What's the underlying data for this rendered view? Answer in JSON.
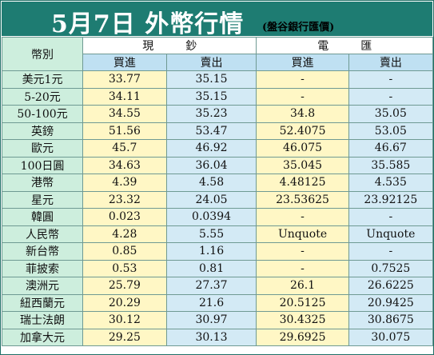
{
  "title": {
    "main": "5月7日 外幣行情",
    "source": "(盤谷銀行匯價)"
  },
  "headers": {
    "currency": "幣別",
    "cash": "現鈔",
    "telegraphic": "電匯",
    "buy": "買進",
    "sell": "賣出"
  },
  "rows": [
    {
      "currency": "美元1元",
      "cash_buy": "33.77",
      "cash_sell": "35.15",
      "tt_buy": "-",
      "tt_sell": "-"
    },
    {
      "currency": "5-20元",
      "cash_buy": "34.11",
      "cash_sell": "35.15",
      "tt_buy": "-",
      "tt_sell": "-"
    },
    {
      "currency": "50-100元",
      "cash_buy": "34.55",
      "cash_sell": "35.23",
      "tt_buy": "34.8",
      "tt_sell": "35.05"
    },
    {
      "currency": "英鎊",
      "cash_buy": "51.56",
      "cash_sell": "53.47",
      "tt_buy": "52.4075",
      "tt_sell": "53.05"
    },
    {
      "currency": "歐元",
      "cash_buy": "45.7",
      "cash_sell": "46.92",
      "tt_buy": "46.075",
      "tt_sell": "46.67"
    },
    {
      "currency": "100日圓",
      "cash_buy": "34.63",
      "cash_sell": "36.04",
      "tt_buy": "35.045",
      "tt_sell": "35.585"
    },
    {
      "currency": "港幣",
      "cash_buy": "4.39",
      "cash_sell": "4.58",
      "tt_buy": "4.48125",
      "tt_sell": "4.535"
    },
    {
      "currency": "星元",
      "cash_buy": "23.32",
      "cash_sell": "24.05",
      "tt_buy": "23.53625",
      "tt_sell": "23.92125"
    },
    {
      "currency": "韓圓",
      "cash_buy": "0.023",
      "cash_sell": "0.0394",
      "tt_buy": "-",
      "tt_sell": "-"
    },
    {
      "currency": "人民幣",
      "cash_buy": "4.28",
      "cash_sell": "5.55",
      "tt_buy": "Unquote",
      "tt_sell": "Unquote"
    },
    {
      "currency": "新台幣",
      "cash_buy": "0.85",
      "cash_sell": "1.16",
      "tt_buy": "-",
      "tt_sell": "-"
    },
    {
      "currency": "菲披索",
      "cash_buy": "0.53",
      "cash_sell": "0.81",
      "tt_buy": "-",
      "tt_sell": "0.7525"
    },
    {
      "currency": "澳洲元",
      "cash_buy": "25.79",
      "cash_sell": "27.37",
      "tt_buy": "26.1",
      "tt_sell": "26.6225"
    },
    {
      "currency": "紐西蘭元",
      "cash_buy": "20.29",
      "cash_sell": "21.6",
      "tt_buy": "20.5125",
      "tt_sell": "20.9425"
    },
    {
      "currency": "瑞士法朗",
      "cash_buy": "30.12",
      "cash_sell": "30.97",
      "tt_buy": "30.4325",
      "tt_sell": "30.8675"
    },
    {
      "currency": "加拿大元",
      "cash_buy": "29.25",
      "cash_sell": "30.13",
      "tt_buy": "29.6925",
      "tt_sell": "30.075"
    }
  ],
  "colors": {
    "title_bg": "#1e7c72",
    "label_bg": "#cdeedd",
    "buy_bg": "#fff7c5",
    "sell_bg": "#d3eaf5",
    "subheader_bg": "#bfe0f2"
  }
}
